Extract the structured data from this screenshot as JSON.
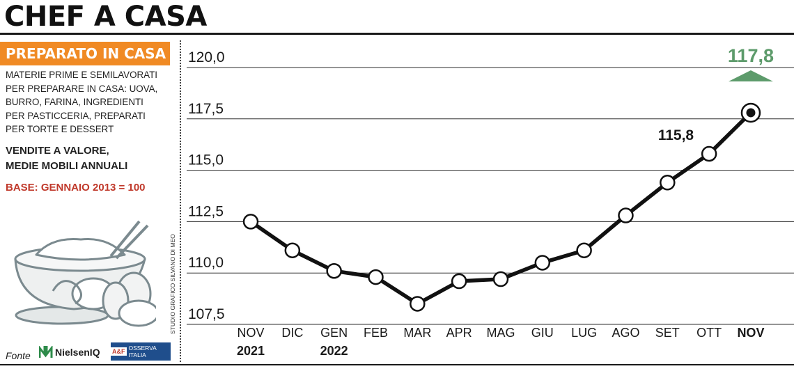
{
  "header": {
    "title": "CHEF A CASA"
  },
  "sidebar": {
    "subtitle": "PREPARATO IN CASA",
    "description": [
      "MATERIE PRIME E SEMILAVORATI",
      "PER PREPARARE IN CASA: UOVA,",
      "BURRO, FARINA, INGREDIENTI",
      "PER PASTICCERIA,  PREPARATI",
      "PER TORTE E DESSERT"
    ],
    "measure": [
      "VENDITE A VALORE,",
      "MEDIE MOBILI ANNUALI"
    ],
    "base": "BASE: GENNAIO 2013 = 100",
    "credit": "STUDIO GRAFICO SILVANO DI MEO",
    "source_label": "Fonte",
    "source_1": "NielsenIQ",
    "source_2_mark": "A&F",
    "source_2": "OSSERVA ITALIA",
    "illustration_icon": "mixing-bowl-eggs-icon"
  },
  "chart_data": {
    "type": "line",
    "categories": [
      "NOV",
      "DIC",
      "GEN",
      "FEB",
      "MAR",
      "APR",
      "MAG",
      "GIU",
      "LUG",
      "AGO",
      "SET",
      "OTT",
      "NOV"
    ],
    "year_labels": [
      {
        "index": 0,
        "label": "2021"
      },
      {
        "index": 2,
        "label": "2022"
      }
    ],
    "values": [
      112.5,
      111.1,
      110.1,
      109.8,
      108.5,
      109.6,
      109.7,
      110.5,
      111.1,
      112.8,
      114.4,
      115.8,
      117.8
    ],
    "y_ticks": [
      "120,0",
      "117,5",
      "115,0",
      "112,5",
      "110,0",
      "107,5"
    ],
    "y_tick_values": [
      120.0,
      117.5,
      115.0,
      112.5,
      110.0,
      107.5
    ],
    "ylim": [
      107.5,
      120.0
    ],
    "grid": true,
    "annotations": [
      {
        "index": 11,
        "label": "115,8"
      },
      {
        "index": 12,
        "label": "117,8",
        "color": "#5d9b6b",
        "arrow": "up"
      }
    ],
    "colors": {
      "line": "#111111",
      "highlight": "#5d9b6b"
    },
    "xlabel": "",
    "ylabel": ""
  }
}
